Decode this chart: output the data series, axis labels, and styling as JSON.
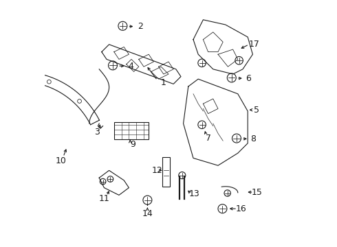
{
  "background_color": "#ffffff",
  "line_color": "#1a1a1a",
  "font_size": 9
}
